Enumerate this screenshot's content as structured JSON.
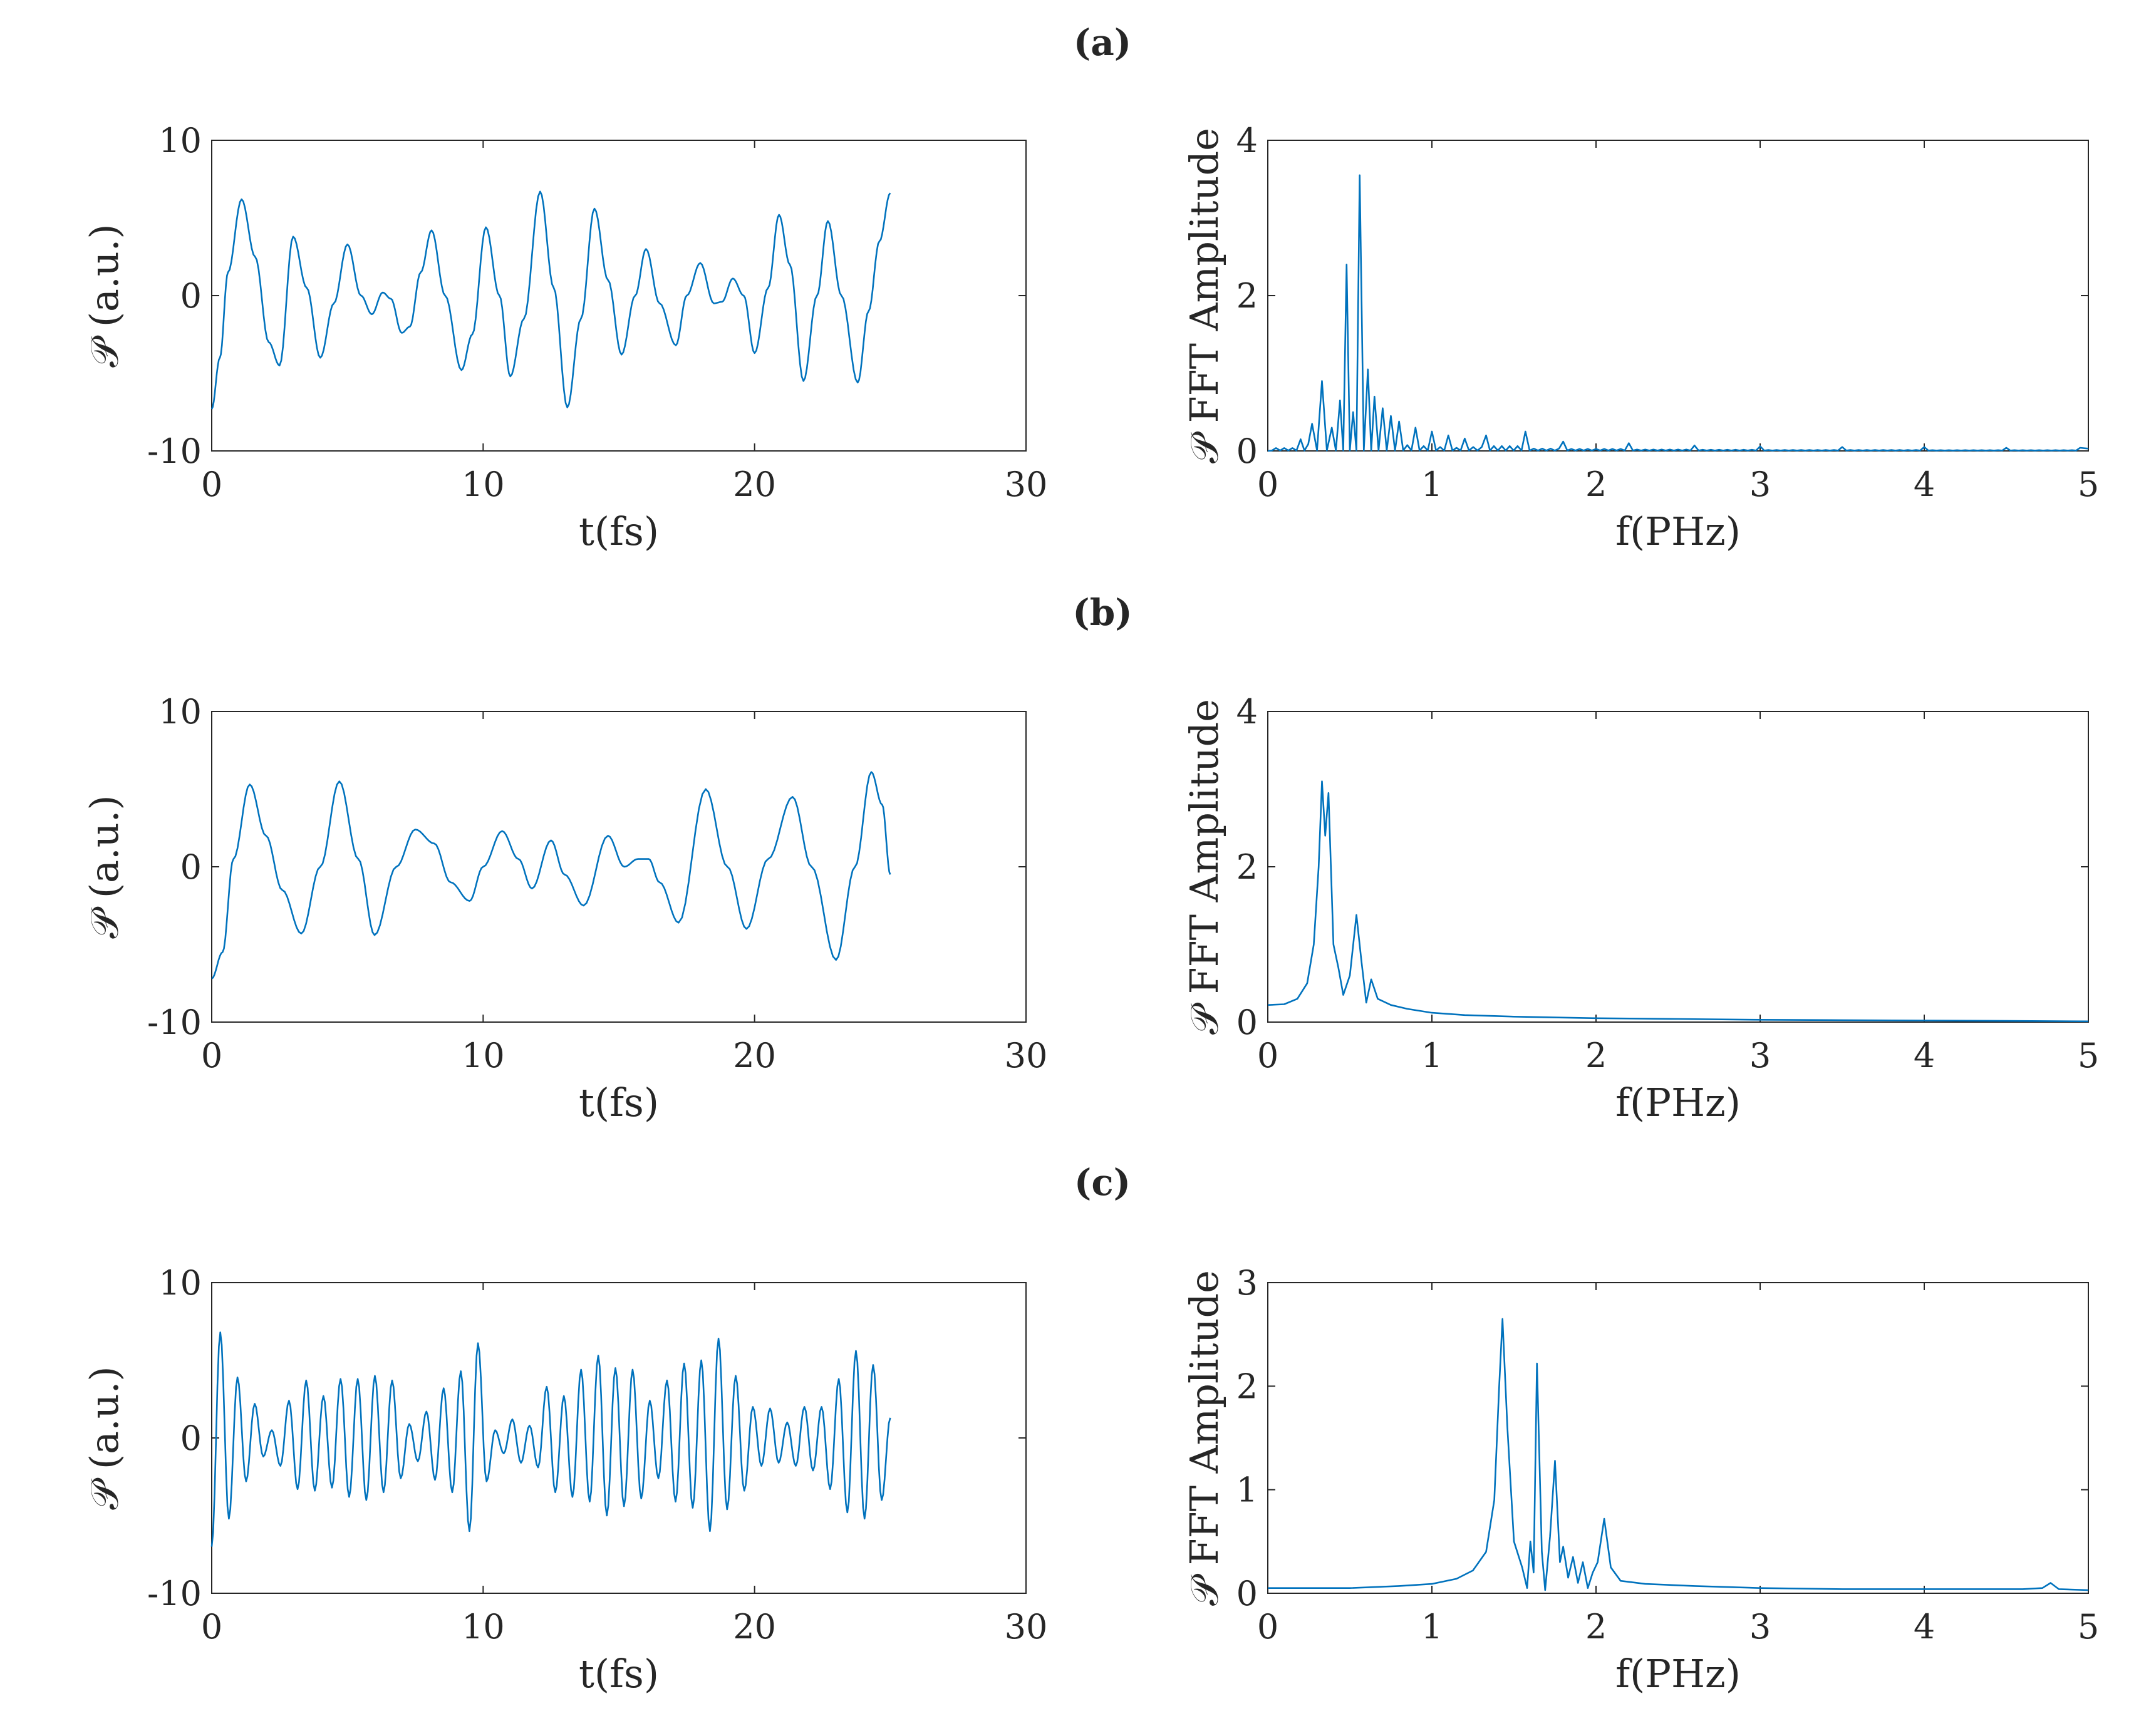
{
  "panels": [
    {
      "label": "(a)"
    },
    {
      "label": "(b)"
    },
    {
      "label": "(c)"
    }
  ],
  "chart_data": [
    {
      "id": "a-time",
      "type": "line",
      "xlabel": "t(fs)",
      "ylabel": "𝒫 (a.u.)",
      "xlim": [
        0,
        30
      ],
      "ylim": [
        -10,
        10
      ],
      "xticks": [
        "0",
        "10",
        "20",
        "30"
      ],
      "yticks": [
        "-10",
        "0",
        "10"
      ],
      "color": "#0072BD",
      "x": [
        0,
        0.3,
        0.6,
        1.1,
        1.6,
        2.1,
        2.5,
        3.0,
        3.5,
        4.0,
        4.5,
        5.0,
        5.5,
        5.9,
        6.3,
        6.6,
        7.0,
        7.3,
        7.7,
        8.1,
        8.6,
        9.2,
        9.6,
        10.1,
        10.6,
        11.0,
        11.5,
        12.1,
        12.6,
        13.1,
        13.6,
        14.1,
        14.6,
        15.1,
        15.6,
        16.0,
        16.5,
        17.1,
        17.5,
        18.0,
        18.5,
        18.8,
        19.2,
        19.6,
        20.0,
        20.5,
        20.9,
        21.3,
        21.8,
        22.3,
        22.7,
        23.2,
        23.8,
        24.2,
        24.6,
        25.0
      ],
      "y": [
        -7.3,
        -4.0,
        1.5,
        6.2,
        2.5,
        -3.0,
        -4.5,
        3.8,
        0.5,
        -4.0,
        -0.5,
        3.3,
        0.0,
        -1.2,
        0.2,
        -0.2,
        -2.4,
        -2.0,
        1.5,
        4.2,
        0.0,
        -4.8,
        -2.5,
        4.4,
        0.0,
        -5.2,
        -1.5,
        6.7,
        0.5,
        -7.2,
        -1.5,
        5.6,
        1.0,
        -3.8,
        0.0,
        3.0,
        -0.5,
        -3.2,
        0.0,
        2.1,
        -0.5,
        -0.4,
        1.1,
        0.0,
        -3.7,
        0.5,
        5.2,
        2.0,
        -5.5,
        0.0,
        4.8,
        0.0,
        -5.6,
        -1.0,
        3.5,
        6.6
      ]
    },
    {
      "id": "a-fft",
      "type": "line",
      "xlabel": "f(PHz)",
      "ylabel": "𝒫 FFT Amplitude",
      "xlim": [
        0,
        5
      ],
      "ylim": [
        0,
        4
      ],
      "xticks": [
        "0",
        "1",
        "2",
        "3",
        "4",
        "5"
      ],
      "yticks": [
        "0",
        "2",
        "4"
      ],
      "color": "#0072BD",
      "peaks": [
        {
          "f": 0.2,
          "a": 0.15
        },
        {
          "f": 0.27,
          "a": 0.35
        },
        {
          "f": 0.33,
          "a": 0.9
        },
        {
          "f": 0.39,
          "a": 0.3
        },
        {
          "f": 0.44,
          "a": 0.65
        },
        {
          "f": 0.48,
          "a": 2.4
        },
        {
          "f": 0.52,
          "a": 0.5
        },
        {
          "f": 0.56,
          "a": 3.55
        },
        {
          "f": 0.61,
          "a": 1.05
        },
        {
          "f": 0.65,
          "a": 0.7
        },
        {
          "f": 0.7,
          "a": 0.55
        },
        {
          "f": 0.75,
          "a": 0.45
        },
        {
          "f": 0.8,
          "a": 0.38
        },
        {
          "f": 0.9,
          "a": 0.3
        },
        {
          "f": 1.0,
          "a": 0.25
        },
        {
          "f": 1.1,
          "a": 0.2
        },
        {
          "f": 1.2,
          "a": 0.16
        },
        {
          "f": 1.33,
          "a": 0.2
        },
        {
          "f": 1.57,
          "a": 0.25
        },
        {
          "f": 1.8,
          "a": 0.12
        },
        {
          "f": 2.2,
          "a": 0.1
        },
        {
          "f": 2.6,
          "a": 0.07
        },
        {
          "f": 3.0,
          "a": 0.06
        },
        {
          "f": 3.5,
          "a": 0.05
        },
        {
          "f": 4.0,
          "a": 0.05
        },
        {
          "f": 4.5,
          "a": 0.04
        },
        {
          "f": 4.95,
          "a": 0.04
        }
      ]
    },
    {
      "id": "b-time",
      "type": "line",
      "xlabel": "t(fs)",
      "ylabel": "𝒫 (a.u.)",
      "xlim": [
        0,
        30
      ],
      "ylim": [
        -10,
        10
      ],
      "xticks": [
        "0",
        "10",
        "20",
        "30"
      ],
      "yticks": [
        "-10",
        "0",
        "10"
      ],
      "color": "#0072BD",
      "x": [
        0,
        0.4,
        0.8,
        1.4,
        2.0,
        2.6,
        3.3,
        4.0,
        4.7,
        5.4,
        6.0,
        6.8,
        7.5,
        8.2,
        8.8,
        9.5,
        10.0,
        10.7,
        11.3,
        11.8,
        12.5,
        13.0,
        13.7,
        14.6,
        15.2,
        15.7,
        16.1,
        16.5,
        17.2,
        18.2,
        19.0,
        19.7,
        20.5,
        21.4,
        22.1,
        23.0,
        23.7,
        24.3,
        24.7,
        25.0
      ],
      "y": [
        -7.2,
        -5.5,
        0.5,
        5.3,
        2.0,
        -1.5,
        -4.3,
        0.0,
        5.5,
        0.5,
        -4.4,
        0.0,
        2.4,
        1.5,
        -1.0,
        -2.2,
        0.0,
        2.3,
        0.5,
        -1.4,
        1.7,
        -0.5,
        -2.5,
        2.0,
        0.0,
        0.5,
        0.5,
        -1.0,
        -3.6,
        5.0,
        0.0,
        -4.0,
        0.5,
        4.5,
        0.0,
        -6.0,
        0.0,
        6.1,
        4.0,
        -0.5
      ]
    },
    {
      "id": "b-fft",
      "type": "line",
      "xlabel": "f(PHz)",
      "ylabel": "𝒫 FFT Amplitude",
      "xlim": [
        0,
        5
      ],
      "ylim": [
        0,
        4
      ],
      "xticks": [
        "0",
        "1",
        "2",
        "3",
        "4",
        "5"
      ],
      "yticks": [
        "0",
        "2",
        "4"
      ],
      "color": "#0072BD",
      "curve": [
        [
          0,
          0.22
        ],
        [
          0.1,
          0.23
        ],
        [
          0.18,
          0.3
        ],
        [
          0.24,
          0.5
        ],
        [
          0.28,
          1.0
        ],
        [
          0.31,
          2.0
        ],
        [
          0.33,
          3.1
        ],
        [
          0.35,
          2.4
        ],
        [
          0.37,
          2.95
        ],
        [
          0.4,
          1.0
        ],
        [
          0.43,
          0.7
        ],
        [
          0.46,
          0.35
        ],
        [
          0.5,
          0.6
        ],
        [
          0.54,
          1.38
        ],
        [
          0.57,
          0.8
        ],
        [
          0.6,
          0.25
        ],
        [
          0.63,
          0.55
        ],
        [
          0.67,
          0.3
        ],
        [
          0.75,
          0.22
        ],
        [
          0.85,
          0.17
        ],
        [
          1.0,
          0.12
        ],
        [
          1.2,
          0.09
        ],
        [
          1.5,
          0.07
        ],
        [
          2.0,
          0.05
        ],
        [
          2.5,
          0.04
        ],
        [
          3.0,
          0.03
        ],
        [
          3.5,
          0.025
        ],
        [
          4.0,
          0.02
        ],
        [
          4.5,
          0.015
        ],
        [
          5.0,
          0.01
        ]
      ]
    },
    {
      "id": "c-time",
      "type": "line",
      "xlabel": "t(fs)",
      "ylabel": "𝒫 (a.u.)",
      "xlim": [
        0,
        30
      ],
      "ylim": [
        -10,
        10
      ],
      "xticks": [
        "0",
        "10",
        "20",
        "30"
      ],
      "yticks": [
        "-10",
        "0",
        "10"
      ],
      "color": "#0072BD",
      "extremes": [
        -7.0,
        6.8,
        -5.2,
        3.9,
        -2.8,
        2.2,
        -1.2,
        0.5,
        -1.8,
        2.4,
        -3.3,
        3.7,
        -3.4,
        2.7,
        -3.2,
        3.8,
        -3.8,
        3.8,
        -4.0,
        4.0,
        -3.5,
        3.7,
        -2.6,
        0.9,
        -1.5,
        1.7,
        -2.7,
        3.2,
        -3.5,
        4.3,
        -6.0,
        6.1,
        -2.8,
        0.5,
        -1.0,
        1.2,
        -1.6,
        0.8,
        -1.9,
        3.3,
        -3.5,
        2.7,
        -3.8,
        4.4,
        -4.1,
        5.3,
        -5.0,
        4.5,
        -4.4,
        4.4,
        -3.9,
        2.4,
        -2.6,
        3.7,
        -4.1,
        4.8,
        -4.5,
        5.0,
        -6.0,
        6.4,
        -4.6,
        4.0,
        -3.4,
        2.0,
        -1.8,
        1.9,
        -1.6,
        1.0,
        -1.8,
        2.0,
        -2.1,
        2.0,
        -3.3,
        3.8,
        -4.8,
        5.6,
        -5.2,
        4.7,
        -4.0,
        1.3
      ]
    },
    {
      "id": "c-fft",
      "type": "line",
      "xlabel": "f(PHz)",
      "ylabel": "𝒫 FFT Amplitude",
      "xlim": [
        0,
        5
      ],
      "ylim": [
        0,
        3
      ],
      "xticks": [
        "0",
        "1",
        "2",
        "3",
        "4",
        "5"
      ],
      "yticks": [
        "0",
        "1",
        "2",
        "3"
      ],
      "color": "#0072BD",
      "curve": [
        [
          0,
          0.05
        ],
        [
          0.5,
          0.05
        ],
        [
          0.8,
          0.07
        ],
        [
          1.0,
          0.09
        ],
        [
          1.15,
          0.14
        ],
        [
          1.25,
          0.22
        ],
        [
          1.33,
          0.4
        ],
        [
          1.38,
          0.9
        ],
        [
          1.41,
          2.0
        ],
        [
          1.43,
          2.65
        ],
        [
          1.46,
          1.6
        ],
        [
          1.5,
          0.5
        ],
        [
          1.55,
          0.25
        ],
        [
          1.58,
          0.05
        ],
        [
          1.6,
          0.5
        ],
        [
          1.62,
          0.2
        ],
        [
          1.64,
          2.22
        ],
        [
          1.67,
          0.4
        ],
        [
          1.69,
          0.03
        ],
        [
          1.72,
          0.55
        ],
        [
          1.75,
          1.28
        ],
        [
          1.78,
          0.3
        ],
        [
          1.8,
          0.45
        ],
        [
          1.83,
          0.15
        ],
        [
          1.86,
          0.35
        ],
        [
          1.89,
          0.1
        ],
        [
          1.92,
          0.3
        ],
        [
          1.95,
          0.05
        ],
        [
          1.98,
          0.2
        ],
        [
          2.01,
          0.3
        ],
        [
          2.05,
          0.72
        ],
        [
          2.09,
          0.25
        ],
        [
          2.15,
          0.12
        ],
        [
          2.3,
          0.09
        ],
        [
          2.6,
          0.07
        ],
        [
          3.0,
          0.05
        ],
        [
          3.5,
          0.04
        ],
        [
          4.0,
          0.04
        ],
        [
          4.6,
          0.04
        ],
        [
          4.72,
          0.05
        ],
        [
          4.77,
          0.1
        ],
        [
          4.82,
          0.04
        ],
        [
          5.0,
          0.03
        ]
      ]
    }
  ]
}
